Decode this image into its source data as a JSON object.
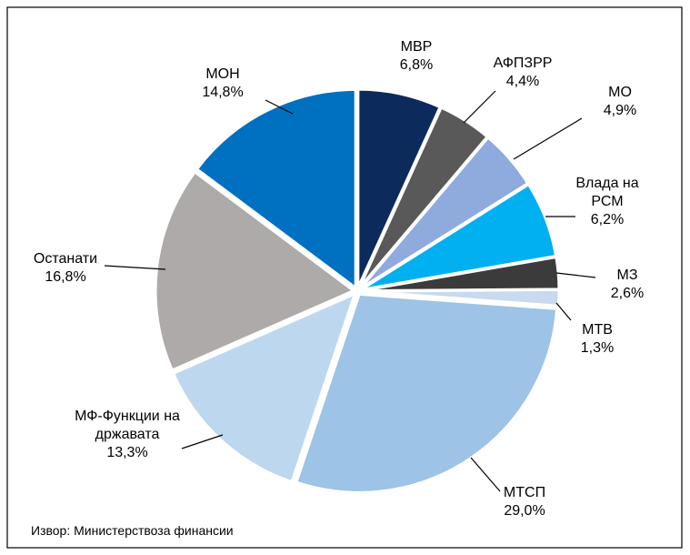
{
  "chart_data": {
    "type": "pie",
    "categories": [
      "МВР",
      "АФПЗРР",
      "МО",
      "Влада на РСМ",
      "МЗ",
      "МТВ",
      "МТСП",
      "МФ-Функции на државата",
      "Останати",
      "МОН"
    ],
    "values": [
      6.8,
      4.4,
      4.9,
      6.2,
      2.6,
      1.3,
      29.0,
      13.3,
      16.8,
      14.8
    ],
    "value_labels": [
      "6,8%",
      "4,4%",
      "4,9%",
      "6,2%",
      "2,6%",
      "1,3%",
      "29,0%",
      "13,3%",
      "16,8%",
      "14,8%"
    ],
    "colors": [
      "#0c2a5b",
      "#595959",
      "#8faadc",
      "#00b0f0",
      "#3b3b3b",
      "#c9d9ef",
      "#9dc3e6",
      "#bdd7ee",
      "#aeaaaa",
      "#0070c0"
    ],
    "source": "Извор: Министерствоза финансии"
  }
}
